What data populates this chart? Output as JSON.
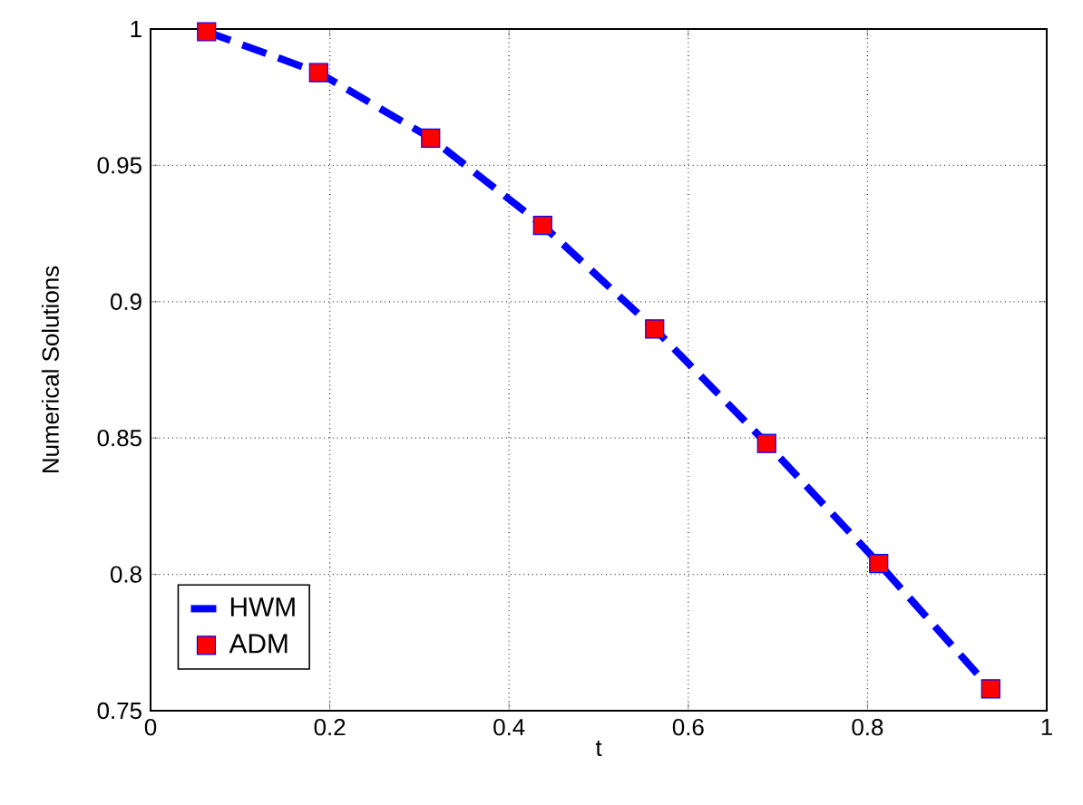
{
  "chart_data": {
    "type": "line",
    "xlabel": "t",
    "ylabel": "Numerical Solutions",
    "xlim": [
      0,
      1
    ],
    "ylim": [
      0.75,
      1
    ],
    "xticks": [
      0,
      0.2,
      0.4,
      0.6,
      0.8,
      1
    ],
    "yticks": [
      0.75,
      0.8,
      0.85,
      0.9,
      0.95,
      1
    ],
    "grid": true,
    "legend": "bottom left",
    "series": [
      {
        "name": "HWM",
        "color": "#0000ff",
        "line_style": "dashed",
        "marker": "none",
        "x": [
          0.0625,
          0.1875,
          0.3125,
          0.4375,
          0.5625,
          0.6875,
          0.8125,
          0.9375
        ],
        "values": [
          0.999,
          0.984,
          0.96,
          0.928,
          0.89,
          0.848,
          0.804,
          0.758
        ]
      },
      {
        "name": "ADM",
        "type": "scatter",
        "color": "#ff0000",
        "marker": "square",
        "x": [
          0.0625,
          0.1875,
          0.3125,
          0.4375,
          0.5625,
          0.6875,
          0.8125,
          0.9375
        ],
        "values": [
          0.999,
          0.984,
          0.96,
          0.928,
          0.89,
          0.848,
          0.804,
          0.758
        ]
      }
    ]
  }
}
